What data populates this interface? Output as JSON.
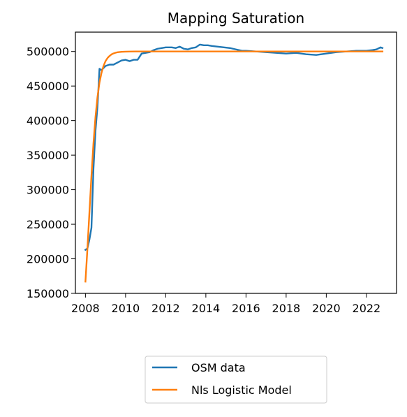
{
  "chart_data": {
    "type": "line",
    "title": "Mapping Saturation",
    "xlabel": "",
    "ylabel": "",
    "xlim": [
      2007.5,
      2023.5
    ],
    "ylim": [
      150000,
      528000
    ],
    "xticks": [
      2008,
      2010,
      2012,
      2014,
      2016,
      2018,
      2020,
      2022
    ],
    "xtick_labels": [
      "2008",
      "2010",
      "2012",
      "2014",
      "2016",
      "2018",
      "2020",
      "2022"
    ],
    "yticks": [
      150000,
      200000,
      250000,
      300000,
      350000,
      400000,
      450000,
      500000
    ],
    "ytick_labels": [
      "150000",
      "200000",
      "250000",
      "300000",
      "350000",
      "400000",
      "450000",
      "500000"
    ],
    "grid": false,
    "legend_position": "below",
    "series": [
      {
        "name": "OSM data",
        "color": "#1f77b4",
        "x": [
          2008.0,
          2008.1,
          2008.2,
          2008.3,
          2008.4,
          2008.5,
          2008.6,
          2008.7,
          2008.8,
          2008.9,
          2009.0,
          2009.2,
          2009.4,
          2009.6,
          2009.8,
          2010.0,
          2010.2,
          2010.4,
          2010.6,
          2010.8,
          2011.0,
          2011.2,
          2011.4,
          2011.6,
          2011.8,
          2012.0,
          2012.3,
          2012.5,
          2012.7,
          2012.9,
          2013.1,
          2013.3,
          2013.5,
          2013.7,
          2013.9,
          2014.1,
          2014.3,
          2014.6,
          2014.9,
          2015.2,
          2015.5,
          2015.8,
          2016.0,
          2016.5,
          2017.0,
          2017.5,
          2018.0,
          2018.5,
          2019.0,
          2019.5,
          2020.0,
          2020.5,
          2021.0,
          2021.5,
          2022.0,
          2022.3,
          2022.5,
          2022.7,
          2022.8
        ],
        "y": [
          213000,
          215000,
          228000,
          245000,
          330000,
          385000,
          420000,
          475000,
          473000,
          476000,
          479000,
          481000,
          481000,
          484000,
          487000,
          488000,
          486000,
          488000,
          488000,
          497000,
          498000,
          499000,
          502000,
          504000,
          505000,
          506000,
          506000,
          505000,
          507000,
          504000,
          503000,
          505000,
          506000,
          510000,
          509000,
          509000,
          508000,
          507000,
          506000,
          505000,
          503000,
          501000,
          501000,
          500000,
          499000,
          498000,
          497000,
          498000,
          496000,
          495000,
          497000,
          499000,
          500000,
          501000,
          501000,
          502000,
          503000,
          506000,
          505000
        ]
      },
      {
        "name": "Nls Logistic Model",
        "color": "#ff7f0e",
        "x": [
          2008.0,
          2008.1,
          2008.2,
          2008.3,
          2008.4,
          2008.5,
          2008.6,
          2008.7,
          2008.8,
          2008.9,
          2009.0,
          2009.1,
          2009.2,
          2009.3,
          2009.4,
          2009.5,
          2009.6,
          2009.8,
          2010.0,
          2010.2,
          2010.5,
          2011.0,
          2011.5,
          2012.0,
          2014.0,
          2016.0,
          2018.0,
          2020.0,
          2022.0,
          2022.8
        ],
        "y": [
          167000,
          215000,
          268000,
          320000,
          367000,
          405000,
          434000,
          455000,
          469000,
          479000,
          486000,
          490500,
          493500,
          495800,
          497200,
          498200,
          498900,
          499500,
          499800,
          499900,
          500000,
          500000,
          500000,
          500000,
          500000,
          500000,
          500000,
          500000,
          500000,
          500000
        ]
      }
    ]
  }
}
